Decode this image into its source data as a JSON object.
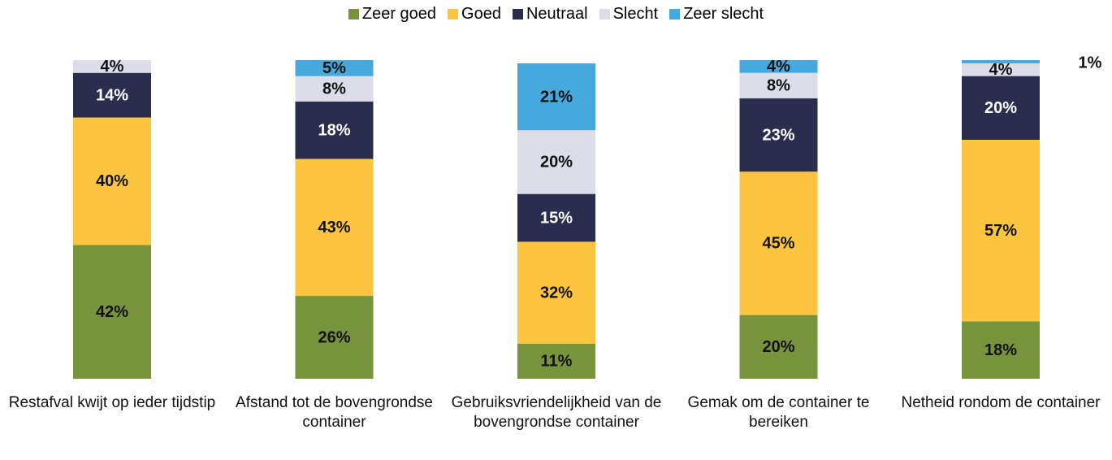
{
  "chart_data": {
    "type": "stacked_bar",
    "categories": [
      "Restafval kwijt op ieder tijdstip",
      "Afstand tot de bovengrondse container",
      "Gebruiksvriendelijkheid van de bovengrondse container",
      "Gemak om de container te bereiken",
      "Netheid rondom de container"
    ],
    "ylim": [
      0,
      100
    ],
    "legend": "top",
    "series": [
      {
        "name": "Zeer goed",
        "color": "#77933c",
        "label_color": "#111111",
        "values": [
          42,
          26,
          11,
          20,
          18
        ],
        "value_labels": [
          "42%",
          "26%",
          "11%",
          "20%",
          "18%"
        ]
      },
      {
        "name": "Goed",
        "color": "#fcc43f",
        "label_color": "#111111",
        "values": [
          40,
          43,
          32,
          45,
          57
        ],
        "value_labels": [
          "40%",
          "43%",
          "32%",
          "45%",
          "57%"
        ]
      },
      {
        "name": "Neutraal",
        "color": "#2b2d4f",
        "label_color": "#ffffff",
        "values": [
          14,
          18,
          15,
          23,
          20
        ],
        "value_labels": [
          "14%",
          "18%",
          "15%",
          "23%",
          "20%"
        ]
      },
      {
        "name": "Slecht",
        "color": "#dcdde8",
        "label_color": "#111111",
        "values": [
          4,
          8,
          20,
          8,
          4
        ],
        "value_labels": [
          "4%",
          "8%",
          "20%",
          "8%",
          "4%"
        ]
      },
      {
        "name": "Zeer slecht",
        "color": "#45a9de",
        "label_color": "#111111",
        "values": [
          null,
          5,
          21,
          4,
          1
        ],
        "value_labels": [
          null,
          "5%",
          "21%",
          "4%",
          "1%"
        ]
      }
    ]
  }
}
